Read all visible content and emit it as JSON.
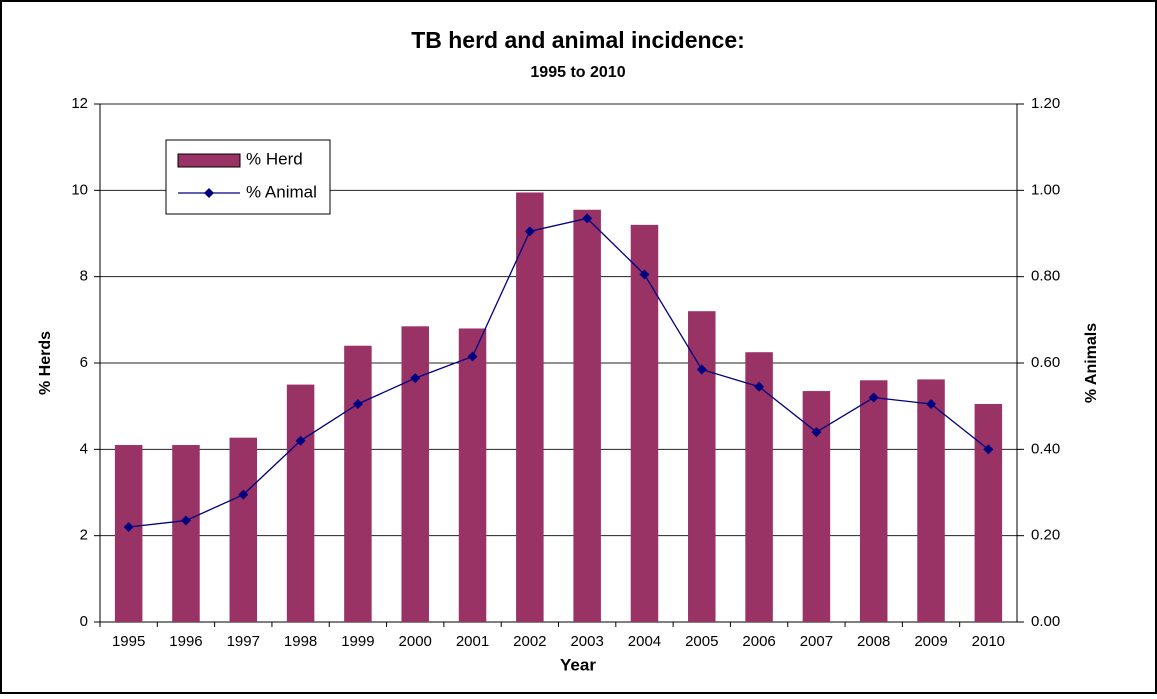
{
  "chart_data": {
    "type": "bar",
    "title": "TB herd and animal incidence:",
    "subtitle": "1995 to 2010",
    "x_label": "Year",
    "y_label": "% Herds",
    "y2_label": "% Animals",
    "categories": [
      "1995",
      "1996",
      "1997",
      "1998",
      "1999",
      "2000",
      "2001",
      "2002",
      "2003",
      "2004",
      "2005",
      "2006",
      "2007",
      "2008",
      "2009",
      "2010"
    ],
    "series": [
      {
        "name": "% Herd",
        "type": "bar",
        "color": "#993366",
        "values": [
          4.1,
          4.1,
          4.27,
          5.5,
          6.4,
          6.85,
          6.8,
          9.95,
          9.55,
          9.2,
          7.2,
          6.25,
          5.35,
          5.6,
          5.62,
          5.05
        ]
      },
      {
        "name": "% Animal",
        "type": "line",
        "axis": "y2",
        "color": "#000080",
        "values": [
          0.22,
          0.235,
          0.295,
          0.42,
          0.505,
          0.565,
          0.615,
          0.905,
          0.935,
          0.805,
          0.585,
          0.545,
          0.44,
          0.52,
          0.505,
          0.4
        ]
      }
    ],
    "ylim": [
      0,
      12
    ],
    "yticks": [
      0,
      2,
      4,
      6,
      8,
      10,
      12
    ],
    "y2lim": [
      0,
      1.2
    ],
    "y2ticks": [
      {
        "value": 0,
        "label": "0.00"
      },
      {
        "value": 0.2,
        "label": "0.20"
      },
      {
        "value": 0.4,
        "label": "0.40"
      },
      {
        "value": 0.6,
        "label": "0.60"
      },
      {
        "value": 0.8,
        "label": "0.80"
      },
      {
        "value": 1.0,
        "label": "1.00"
      },
      {
        "value": 1.2,
        "label": "1.20"
      }
    ],
    "grid": true,
    "legend": "upper left"
  }
}
